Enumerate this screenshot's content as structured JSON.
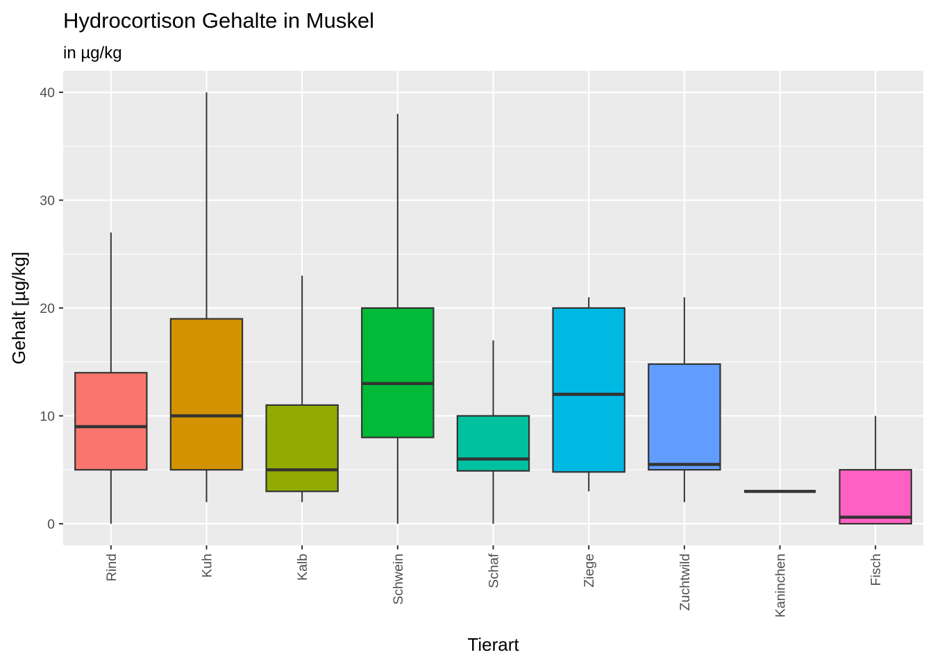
{
  "chart_data": {
    "type": "boxplot",
    "title": "Hydrocortison Gehalte in Muskel",
    "subtitle": "in µg/kg",
    "xlabel": "Tierart",
    "ylabel": "Gehalt [µg/kg]",
    "ylim": [
      -2,
      42
    ],
    "yticks": [
      0,
      10,
      20,
      30,
      40
    ],
    "grid": true,
    "legend": "none",
    "categories": [
      "Rind",
      "Kuh",
      "Kalb",
      "Schwein",
      "Schaf",
      "Ziege",
      "Zuchtwild",
      "Kaninchen",
      "Fisch"
    ],
    "boxes": [
      {
        "category": "Rind",
        "min": 0,
        "q1": 5,
        "median": 9,
        "q3": 14,
        "max": 27,
        "color": "#F8766D"
      },
      {
        "category": "Kuh",
        "min": 2,
        "q1": 5,
        "median": 10,
        "q3": 19,
        "max": 40,
        "color": "#D39200"
      },
      {
        "category": "Kalb",
        "min": 2,
        "q1": 3,
        "median": 5,
        "q3": 11,
        "max": 23,
        "color": "#93AA00"
      },
      {
        "category": "Schwein",
        "min": 0,
        "q1": 8,
        "median": 13,
        "q3": 20,
        "max": 38,
        "color": "#00BA38"
      },
      {
        "category": "Schaf",
        "min": 0,
        "q1": 4.9,
        "median": 6,
        "q3": 10,
        "max": 17,
        "color": "#00C19F"
      },
      {
        "category": "Ziege",
        "min": 3,
        "q1": 4.8,
        "median": 12,
        "q3": 20,
        "max": 21,
        "color": "#00B9E3"
      },
      {
        "category": "Zuchtwild",
        "min": 2,
        "q1": 5,
        "median": 5.5,
        "q3": 14.8,
        "max": 21,
        "color": "#619CFF"
      },
      {
        "category": "Kaninchen",
        "min": 3,
        "q1": 3,
        "median": 3,
        "q3": 3,
        "max": 3,
        "color": "#DB72FB"
      },
      {
        "category": "Fisch",
        "min": 0,
        "q1": 0,
        "median": 0.6,
        "q3": 5,
        "max": 10,
        "color": "#FF61C3"
      }
    ]
  }
}
